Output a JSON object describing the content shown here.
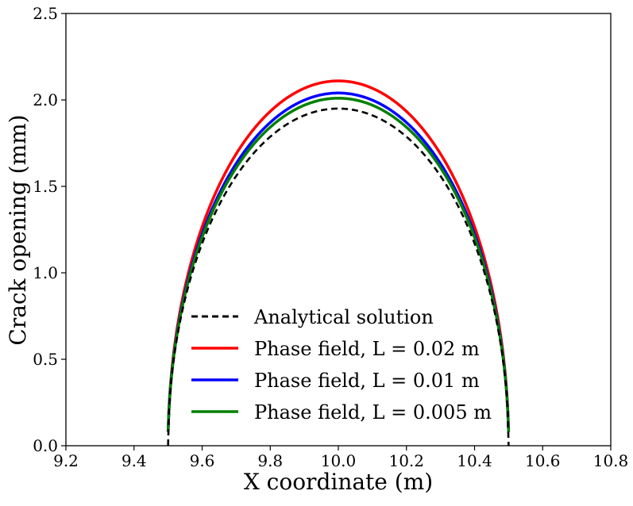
{
  "chart_data": {
    "type": "line",
    "title": "",
    "xlabel": "X coordinate (m)",
    "ylabel": "Crack opening (mm)",
    "xlim": [
      9.2,
      10.8
    ],
    "ylim": [
      0.0,
      2.5
    ],
    "xticks": [
      "9.2",
      "9.4",
      "9.6",
      "9.8",
      "10.0",
      "10.2",
      "10.4",
      "10.6",
      "10.8"
    ],
    "yticks": [
      "0.0",
      "0.5",
      "1.0",
      "1.5",
      "2.0",
      "2.5"
    ],
    "grid": false,
    "legend_position": "lower-center",
    "series": [
      {
        "name": "Analytical solution",
        "color": "#000000",
        "style": "dashed",
        "crack_center": 10.0,
        "half_length": 0.5,
        "max_opening": 1.95,
        "start_value": 0.0
      },
      {
        "name": "Phase field, L = 0.02 m",
        "color": "#ff0000",
        "style": "solid",
        "crack_center": 10.0,
        "half_length": 0.5,
        "max_opening": 2.11,
        "start_value": 0.08
      },
      {
        "name": "Phase field, L = 0.01 m",
        "color": "#0000ff",
        "style": "solid",
        "crack_center": 10.0,
        "half_length": 0.5,
        "max_opening": 2.04,
        "start_value": 0.08
      },
      {
        "name": "Phase field, L = 0.005 m",
        "color": "#008000",
        "style": "solid",
        "crack_center": 10.0,
        "half_length": 0.5,
        "max_opening": 2.01,
        "start_value": 0.08
      }
    ]
  }
}
